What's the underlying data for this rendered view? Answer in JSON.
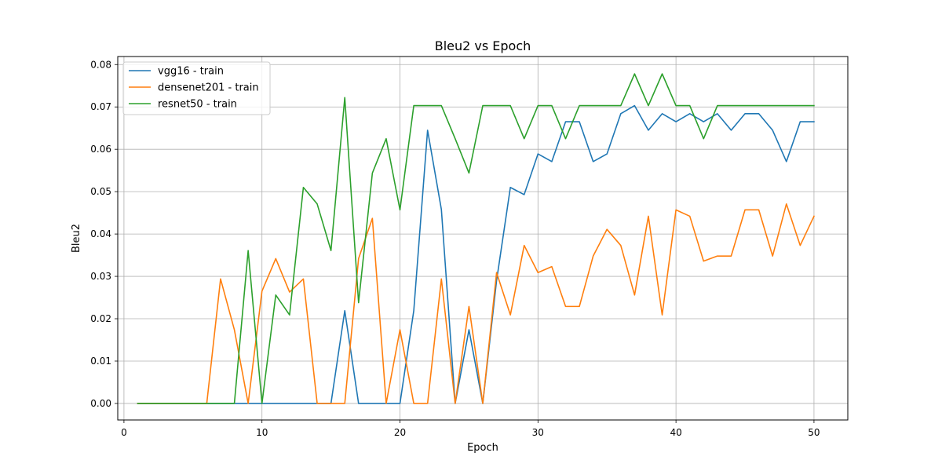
{
  "chart_data": {
    "type": "line",
    "title": "Bleu2 vs Epoch",
    "xlabel": "Epoch",
    "ylabel": "Bleu2",
    "xlim": [
      -0.45,
      52.45
    ],
    "ylim": [
      -0.0039,
      0.0819
    ],
    "xticks": [
      0,
      10,
      20,
      30,
      40,
      50
    ],
    "yticks": [
      0.0,
      0.01,
      0.02,
      0.03,
      0.04,
      0.05,
      0.06,
      0.07,
      0.08
    ],
    "ytick_labels": [
      "0.00",
      "0.01",
      "0.02",
      "0.03",
      "0.04",
      "0.05",
      "0.06",
      "0.07",
      "0.08"
    ],
    "grid": true,
    "legend_position": "top-left",
    "x": [
      1,
      2,
      3,
      4,
      5,
      6,
      7,
      8,
      9,
      10,
      11,
      12,
      13,
      14,
      15,
      16,
      17,
      18,
      19,
      20,
      21,
      22,
      23,
      24,
      25,
      26,
      27,
      28,
      29,
      30,
      31,
      32,
      33,
      34,
      35,
      36,
      37,
      38,
      39,
      40,
      41,
      42,
      43,
      44,
      45,
      46,
      47,
      48,
      49,
      50
    ],
    "series": [
      {
        "name": "vgg16 - train",
        "color": "#1f77b4",
        "values": [
          0,
          0,
          0,
          0,
          0,
          0,
          0,
          0,
          0,
          0,
          0,
          0,
          0,
          0,
          0,
          0.0219,
          0,
          0,
          0,
          0,
          0.0219,
          0.0645,
          0.0458,
          0,
          0.0174,
          0,
          0.029,
          0.051,
          0.0493,
          0.0589,
          0.0571,
          0.0665,
          0.0665,
          0.0571,
          0.0589,
          0.0684,
          0.0703,
          0.0645,
          0.0684,
          0.0665,
          0.0684,
          0.0665,
          0.0684,
          0.0645,
          0.0684,
          0.0684,
          0.0645,
          0.0571,
          0.0665,
          0.0665
        ]
      },
      {
        "name": "densenet201 - train",
        "color": "#ff7f0e",
        "values": [
          0,
          0,
          0,
          0,
          0,
          0,
          0.0294,
          0.0174,
          0,
          0.0265,
          0.0342,
          0.0263,
          0.0294,
          0,
          0,
          0,
          0.0342,
          0.0437,
          0,
          0.0174,
          0,
          0,
          0.0294,
          0,
          0.0229,
          0,
          0.0309,
          0.0209,
          0.0373,
          0.0309,
          0.0323,
          0.0229,
          0.0229,
          0.0348,
          0.0411,
          0.0373,
          0.0256,
          0.0442,
          0.0209,
          0.0457,
          0.0442,
          0.0336,
          0.0348,
          0.0348,
          0.0457,
          0.0457,
          0.0348,
          0.0471,
          0.0373,
          0.0442
        ]
      },
      {
        "name": "resnet50 - train",
        "color": "#2ca02c",
        "values": [
          0,
          0,
          0,
          0,
          0,
          0,
          0,
          0,
          0.0361,
          0,
          0.0256,
          0.0209,
          0.051,
          0.0471,
          0.0361,
          0.0722,
          0.0238,
          0.0544,
          0.0625,
          0.0457,
          0.0703,
          0.0703,
          0.0703,
          0.0625,
          0.0544,
          0.0703,
          0.0703,
          0.0703,
          0.0625,
          0.0703,
          0.0703,
          0.0625,
          0.0703,
          0.0703,
          0.0703,
          0.0703,
          0.0778,
          0.0703,
          0.0778,
          0.0703,
          0.0703,
          0.0625,
          0.0703,
          0.0703,
          0.0703,
          0.0703,
          0.0703,
          0.0703,
          0.0703,
          0.0703
        ]
      }
    ]
  }
}
